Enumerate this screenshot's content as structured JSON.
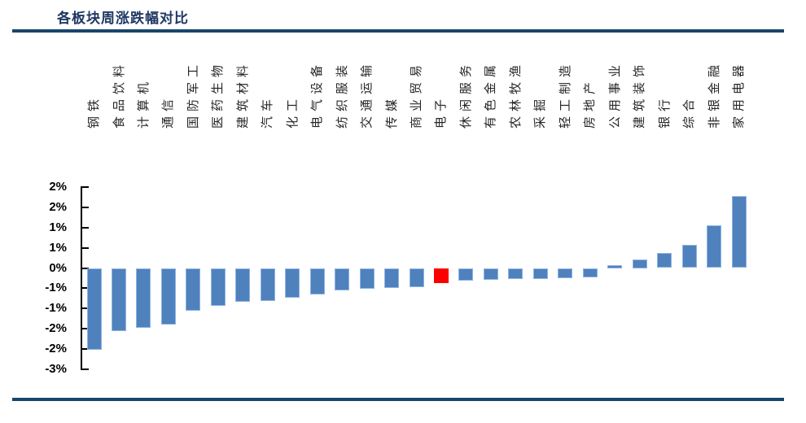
{
  "header": {
    "title": "各板块周涨跌幅对比"
  },
  "colors": {
    "rule_navy": "#17466B",
    "title_navy": "#1F3864",
    "bar_blue": "#4F81BD",
    "bar_blue_border": "#8EB4E3",
    "bar_red": "#FF0000",
    "axis_black": "#000000",
    "xlabel_gray": "#262626"
  },
  "chart_data": {
    "type": "bar",
    "title": "各板块周涨跌幅对比",
    "categories": [
      "钢铁",
      "食品饮料",
      "计算机",
      "通信",
      "国防军工",
      "医药生物",
      "建筑材料",
      "汽车",
      "化工",
      "电气设备",
      "纺织服装",
      "交通运输",
      "传媒",
      "商业贸易",
      "电子",
      "休闲服务",
      "有色金属",
      "农林牧渔",
      "采掘",
      "轻工制造",
      "房地产",
      "公用事业",
      "建筑装饰",
      "银行",
      "综合",
      "非银金融",
      "家用电器"
    ],
    "values": [
      -2.02,
      -1.56,
      -1.48,
      -1.4,
      -1.05,
      -0.93,
      -0.84,
      -0.81,
      -0.73,
      -0.65,
      -0.56,
      -0.51,
      -0.49,
      -0.47,
      -0.38,
      -0.32,
      -0.29,
      -0.28,
      -0.27,
      -0.25,
      -0.23,
      0.07,
      0.22,
      0.37,
      0.58,
      1.05,
      1.78
    ],
    "unit": "%",
    "highlight_category": "电子",
    "highlight_color": "#FF0000",
    "bar_color": "#4F81BD",
    "xlabel": "",
    "ylabel": "",
    "ylim": [
      -2.5,
      2.0
    ],
    "y_tick_step": 0.5,
    "y_tick_values": [
      2.0,
      1.5,
      1.0,
      0.5,
      0.0,
      -0.5,
      -1.0,
      -1.5,
      -2.0,
      -2.5
    ],
    "y_tick_labels": [
      "2%",
      "2%",
      "1%",
      "1%",
      "0%",
      "-1%",
      "-1%",
      "-2%",
      "-2%",
      "-3%"
    ],
    "x_labels_rotation_deg": -90,
    "grid": false,
    "legend": false
  }
}
